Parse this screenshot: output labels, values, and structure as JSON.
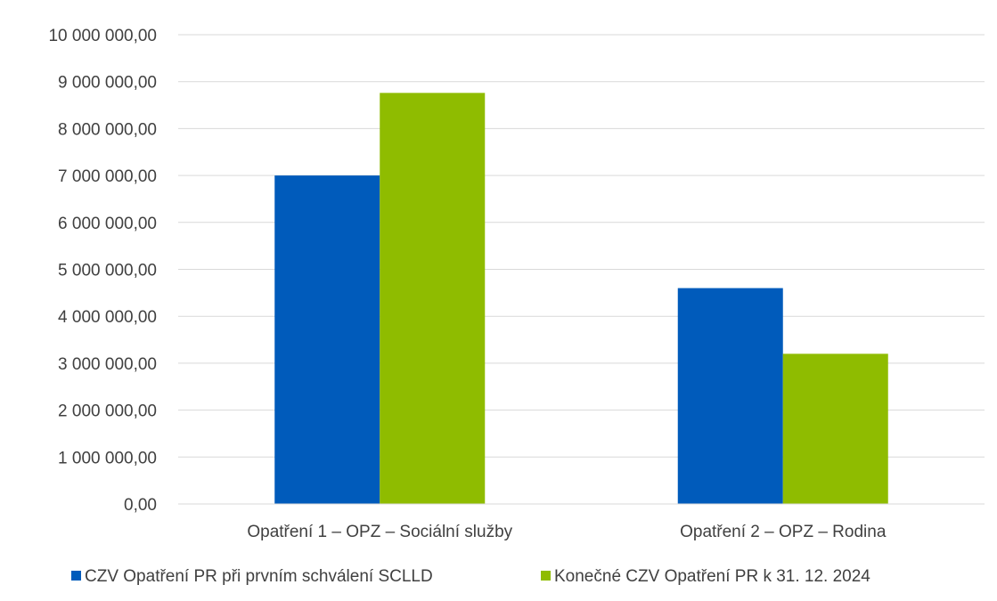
{
  "chart_data": {
    "type": "bar",
    "title": "",
    "xlabel": "",
    "ylabel": "",
    "categories": [
      "Opatření 1 – OPZ – Sociální služby",
      "Opatření 2 – OPZ – Rodina"
    ],
    "series": [
      {
        "name": "CZV Opatření PR při prvním schválení SCLLD",
        "color": "#005bbb",
        "values": [
          7000000,
          4600000
        ]
      },
      {
        "name": "Konečné CZV Opatření PR k 31. 12. 2024",
        "color": "#8fbc00",
        "values": [
          8760000,
          3200000
        ]
      }
    ],
    "ylim": [
      0,
      10000000
    ],
    "yticks": [
      0,
      1000000,
      2000000,
      3000000,
      4000000,
      5000000,
      6000000,
      7000000,
      8000000,
      9000000,
      10000000
    ],
    "ytick_labels": [
      "0,00",
      "1 000 000,00",
      "2 000 000,00",
      "3 000 000,00",
      "4 000 000,00",
      "5 000 000,00",
      "6 000 000,00",
      "7 000 000,00",
      "8 000 000,00",
      "9 000 000,00",
      "10 000 000,00"
    ],
    "grid": true,
    "legend_position": "bottom"
  }
}
